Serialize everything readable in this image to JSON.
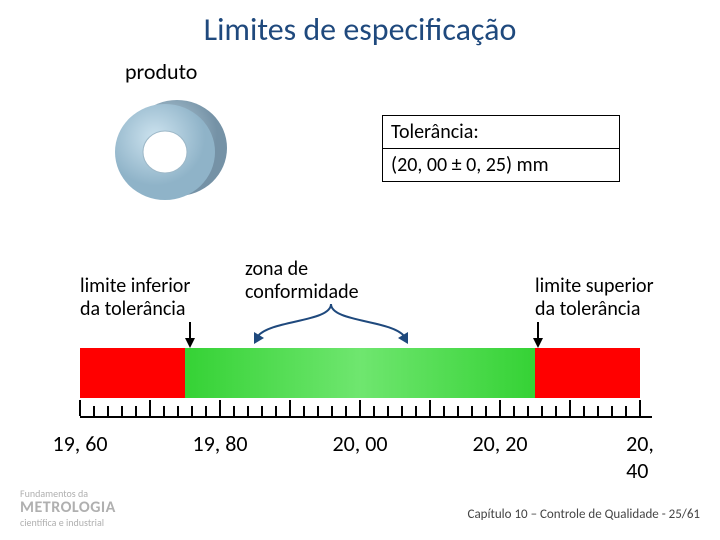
{
  "title": "Limites de especificação",
  "produto_label": "produto",
  "tolerance": {
    "line1": "Tolerância:",
    "line2": "(20, 00 ± 0, 25) mm"
  },
  "labels": {
    "inferior": "limite inferior\nda tolerância",
    "zona": "zona de\nconformidade",
    "superior": "limite superior\nda tolerância"
  },
  "bar": {
    "total_width": 560,
    "height": 50,
    "red_color": "#ff0000",
    "green_color_start": "#35d235",
    "green_color_end": "#6fe66f",
    "scale_min": 19.6,
    "scale_max": 20.4,
    "green_min": 19.75,
    "green_max": 20.25,
    "tick_step_minor": 0.02,
    "tick_step_major": 0.1,
    "labels": [
      {
        "v": 19.6,
        "t": "19, 60"
      },
      {
        "v": 19.8,
        "t": "19, 80"
      },
      {
        "v": 20.0,
        "t": "20, 00"
      },
      {
        "v": 20.2,
        "t": "20, 20"
      },
      {
        "v": 20.4,
        "t": "20, 40"
      }
    ]
  },
  "ring_svg": {
    "outer_back": "#88a4b8",
    "outer_front": "#a8c5d8",
    "inner_hole": "#ffffff"
  },
  "footer": {
    "small": "Fundamentos da",
    "big": "METROLOGIA",
    "sub": "científica e industrial",
    "right": "Capítulo 10 – Controle de Qualidade - 25/61"
  },
  "colors": {
    "title": "#1f497d",
    "text": "#000000",
    "arrow": "#1f497d"
  }
}
